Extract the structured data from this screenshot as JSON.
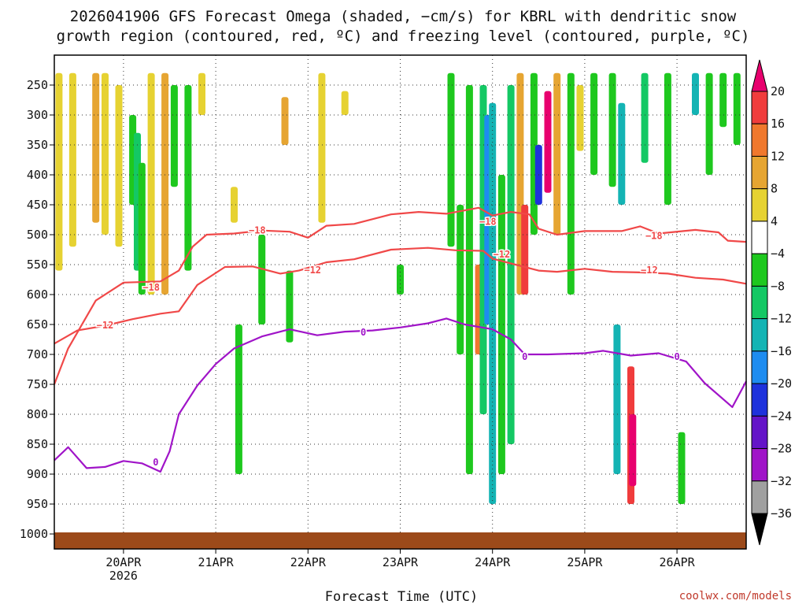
{
  "chart_data": {
    "type": "heatmap",
    "title_lines": [
      "2026041906 GFS Forecast Omega (shaded, −cm/s) for KBRL with dendritic snow",
      "growth region (contoured, red, ºC) and freezing level (contoured, purple, ºC)"
    ],
    "xlabel": "Forecast Time (UTC)",
    "ylabel": "",
    "credit": "coolwx.com/models",
    "x_range_days": [
      19.25,
      26.75
    ],
    "x_ticks": [
      {
        "day": 20,
        "label": "20APR",
        "sub": "2026"
      },
      {
        "day": 21,
        "label": "21APR",
        "sub": ""
      },
      {
        "day": 22,
        "label": "22APR",
        "sub": ""
      },
      {
        "day": 23,
        "label": "23APR",
        "sub": ""
      },
      {
        "day": 24,
        "label": "24APR",
        "sub": ""
      },
      {
        "day": 25,
        "label": "25APR",
        "sub": ""
      },
      {
        "day": 26,
        "label": "26APR",
        "sub": ""
      }
    ],
    "y_range_hpa": [
      200,
      1025
    ],
    "y_ticks": [
      250,
      300,
      350,
      400,
      450,
      500,
      550,
      600,
      650,
      700,
      750,
      800,
      850,
      900,
      950,
      1000
    ],
    "surface_pressure_hpa": 1000,
    "colorbar": {
      "levels": [
        20,
        16,
        12,
        8,
        4,
        -4,
        -8,
        -12,
        -16,
        -20,
        -24,
        -28,
        -32,
        -36
      ],
      "labels": [
        "20",
        "16",
        "12",
        "8",
        "4",
        "−4",
        "−8",
        "−12",
        "−16",
        "−20",
        "−24",
        "−28",
        "−32",
        "−36"
      ],
      "bins": [
        {
          "range": "> 20",
          "color": "#e8006e"
        },
        {
          "range": "16 to 20",
          "color": "#f03c3c"
        },
        {
          "range": "12 to 16",
          "color": "#f0782d"
        },
        {
          "range": "8 to 12",
          "color": "#e6a532"
        },
        {
          "range": "4 to 8",
          "color": "#e6d232"
        },
        {
          "range": "-4 to 4",
          "color": "#ffffff"
        },
        {
          "range": "-8 to -4",
          "color": "#1ec81e"
        },
        {
          "range": "-12 to -8",
          "color": "#14c864"
        },
        {
          "range": "-16 to -12",
          "color": "#14b4b4"
        },
        {
          "range": "-20 to -16",
          "color": "#1e8cf0"
        },
        {
          "range": "-24 to -20",
          "color": "#1e32dc"
        },
        {
          "range": "-28 to -24",
          "color": "#6414c8"
        },
        {
          "range": "-32 to -28",
          "color": "#a014c8"
        },
        {
          "range": "-36 to -32",
          "color": "#a0a0a0"
        },
        {
          "range": "< -36",
          "color": "#000000"
        }
      ]
    },
    "shaded_regions": [
      {
        "day": 19.3,
        "hpa": [
          230,
          560
        ],
        "color": "#e6d232"
      },
      {
        "day": 19.45,
        "hpa": [
          230,
          520
        ],
        "color": "#e6d232"
      },
      {
        "day": 19.7,
        "hpa": [
          230,
          480
        ],
        "color": "#e6a532"
      },
      {
        "day": 19.8,
        "hpa": [
          230,
          500
        ],
        "color": "#e6d232"
      },
      {
        "day": 19.95,
        "hpa": [
          250,
          520
        ],
        "color": "#e6d232"
      },
      {
        "day": 20.1,
        "hpa": [
          300,
          450
        ],
        "color": "#1ec81e"
      },
      {
        "day": 20.15,
        "hpa": [
          330,
          560
        ],
        "color": "#14c864"
      },
      {
        "day": 20.2,
        "hpa": [
          380,
          600
        ],
        "color": "#1ec81e"
      },
      {
        "day": 20.3,
        "hpa": [
          230,
          600
        ],
        "color": "#e6d232"
      },
      {
        "day": 20.45,
        "hpa": [
          230,
          600
        ],
        "color": "#e6a532"
      },
      {
        "day": 20.55,
        "hpa": [
          250,
          420
        ],
        "color": "#1ec81e"
      },
      {
        "day": 20.7,
        "hpa": [
          250,
          560
        ],
        "color": "#1ec81e"
      },
      {
        "day": 20.85,
        "hpa": [
          230,
          300
        ],
        "color": "#e6d232"
      },
      {
        "day": 21.2,
        "hpa": [
          420,
          480
        ],
        "color": "#e6d232"
      },
      {
        "day": 21.25,
        "hpa": [
          650,
          900
        ],
        "color": "#1ec81e"
      },
      {
        "day": 21.5,
        "hpa": [
          500,
          650
        ],
        "color": "#1ec81e"
      },
      {
        "day": 21.75,
        "hpa": [
          270,
          350
        ],
        "color": "#e6a532"
      },
      {
        "day": 21.8,
        "hpa": [
          560,
          680
        ],
        "color": "#1ec81e"
      },
      {
        "day": 22.15,
        "hpa": [
          230,
          480
        ],
        "color": "#e6d232"
      },
      {
        "day": 22.4,
        "hpa": [
          260,
          300
        ],
        "color": "#e6d232"
      },
      {
        "day": 23.0,
        "hpa": [
          550,
          600
        ],
        "color": "#1ec81e"
      },
      {
        "day": 23.55,
        "hpa": [
          230,
          520
        ],
        "color": "#1ec81e"
      },
      {
        "day": 23.65,
        "hpa": [
          450,
          700
        ],
        "color": "#1ec81e"
      },
      {
        "day": 23.75,
        "hpa": [
          250,
          900
        ],
        "color": "#1ec81e"
      },
      {
        "day": 23.85,
        "hpa": [
          550,
          700
        ],
        "color": "#f0782d"
      },
      {
        "day": 23.9,
        "hpa": [
          250,
          800
        ],
        "color": "#14c864"
      },
      {
        "day": 23.95,
        "hpa": [
          300,
          650
        ],
        "color": "#1e8cf0"
      },
      {
        "day": 24.0,
        "hpa": [
          280,
          950
        ],
        "color": "#14b4b4"
      },
      {
        "day": 24.1,
        "hpa": [
          400,
          900
        ],
        "color": "#1ec81e"
      },
      {
        "day": 24.2,
        "hpa": [
          250,
          850
        ],
        "color": "#14c864"
      },
      {
        "day": 24.3,
        "hpa": [
          230,
          600
        ],
        "color": "#e6a532"
      },
      {
        "day": 24.35,
        "hpa": [
          450,
          600
        ],
        "color": "#f03c3c"
      },
      {
        "day": 24.45,
        "hpa": [
          230,
          500
        ],
        "color": "#1ec81e"
      },
      {
        "day": 24.5,
        "hpa": [
          350,
          450
        ],
        "color": "#1e32dc"
      },
      {
        "day": 24.6,
        "hpa": [
          260,
          430
        ],
        "color": "#e8006e"
      },
      {
        "day": 24.7,
        "hpa": [
          230,
          500
        ],
        "color": "#e6a532"
      },
      {
        "day": 24.85,
        "hpa": [
          230,
          600
        ],
        "color": "#1ec81e"
      },
      {
        "day": 24.95,
        "hpa": [
          250,
          360
        ],
        "color": "#e6d232"
      },
      {
        "day": 25.1,
        "hpa": [
          230,
          400
        ],
        "color": "#1ec81e"
      },
      {
        "day": 25.3,
        "hpa": [
          230,
          420
        ],
        "color": "#1ec81e"
      },
      {
        "day": 25.4,
        "hpa": [
          280,
          450
        ],
        "color": "#14b4b4"
      },
      {
        "day": 25.35,
        "hpa": [
          650,
          900
        ],
        "color": "#14b4b4"
      },
      {
        "day": 25.5,
        "hpa": [
          720,
          950
        ],
        "color": "#f03c3c"
      },
      {
        "day": 25.52,
        "hpa": [
          800,
          920
        ],
        "color": "#e8006e"
      },
      {
        "day": 25.65,
        "hpa": [
          230,
          380
        ],
        "color": "#14c864"
      },
      {
        "day": 25.9,
        "hpa": [
          230,
          450
        ],
        "color": "#1ec81e"
      },
      {
        "day": 26.05,
        "hpa": [
          830,
          950
        ],
        "color": "#1ec81e"
      },
      {
        "day": 26.2,
        "hpa": [
          230,
          300
        ],
        "color": "#14b4b4"
      },
      {
        "day": 26.35,
        "hpa": [
          230,
          400
        ],
        "color": "#1ec81e"
      },
      {
        "day": 26.5,
        "hpa": [
          230,
          320
        ],
        "color": "#1ec81e"
      },
      {
        "day": 26.65,
        "hpa": [
          230,
          350
        ],
        "color": "#1ec81e"
      }
    ],
    "series": [
      {
        "name": "-18 ºC",
        "color": "#f04848",
        "label": "−18",
        "label_points": [
          [
            20.3,
            588
          ],
          [
            21.45,
            493
          ],
          [
            23.95,
            478
          ],
          [
            25.75,
            502
          ]
        ],
        "points": [
          [
            19.25,
            750
          ],
          [
            19.4,
            690
          ],
          [
            19.7,
            610
          ],
          [
            20.0,
            580
          ],
          [
            20.4,
            578
          ],
          [
            20.6,
            560
          ],
          [
            20.75,
            520
          ],
          [
            20.9,
            500
          ],
          [
            21.2,
            498
          ],
          [
            21.5,
            493
          ],
          [
            21.8,
            495
          ],
          [
            22.0,
            505
          ],
          [
            22.2,
            485
          ],
          [
            22.5,
            482
          ],
          [
            22.9,
            466
          ],
          [
            23.2,
            462
          ],
          [
            23.5,
            465
          ],
          [
            23.85,
            455
          ],
          [
            24.0,
            468
          ],
          [
            24.2,
            462
          ],
          [
            24.4,
            466
          ],
          [
            24.5,
            490
          ],
          [
            24.7,
            500
          ],
          [
            25.0,
            494
          ],
          [
            25.4,
            494
          ],
          [
            25.6,
            486
          ],
          [
            25.8,
            498
          ],
          [
            26.2,
            492
          ],
          [
            26.45,
            496
          ],
          [
            26.55,
            510
          ],
          [
            26.75,
            512
          ]
        ],
        "type": "line"
      },
      {
        "name": "-12 ºC",
        "color": "#f04848",
        "label": "−12",
        "label_points": [
          [
            19.8,
            651
          ],
          [
            22.05,
            559
          ],
          [
            24.1,
            533
          ],
          [
            25.7,
            559
          ]
        ],
        "points": [
          [
            19.25,
            682
          ],
          [
            19.5,
            660
          ],
          [
            19.8,
            652
          ],
          [
            20.1,
            641
          ],
          [
            20.4,
            632
          ],
          [
            20.6,
            628
          ],
          [
            20.8,
            584
          ],
          [
            21.1,
            554
          ],
          [
            21.4,
            553
          ],
          [
            21.7,
            565
          ],
          [
            21.9,
            560
          ],
          [
            22.2,
            546
          ],
          [
            22.5,
            541
          ],
          [
            22.9,
            525
          ],
          [
            23.3,
            522
          ],
          [
            23.6,
            526
          ],
          [
            23.9,
            527
          ],
          [
            24.0,
            540
          ],
          [
            24.2,
            548
          ],
          [
            24.5,
            560
          ],
          [
            24.7,
            562
          ],
          [
            25.0,
            557
          ],
          [
            25.3,
            562
          ],
          [
            25.6,
            563
          ],
          [
            25.9,
            565
          ],
          [
            26.2,
            572
          ],
          [
            26.5,
            575
          ],
          [
            26.75,
            582
          ]
        ],
        "type": "line"
      },
      {
        "name": "0 ºC (freezing level)",
        "color": "#a014c8",
        "label": "0",
        "label_points": [
          [
            20.35,
            880
          ],
          [
            22.6,
            663
          ],
          [
            24.35,
            704
          ],
          [
            26.0,
            704
          ]
        ],
        "points": [
          [
            19.25,
            877
          ],
          [
            19.4,
            855
          ],
          [
            19.6,
            890
          ],
          [
            19.8,
            888
          ],
          [
            20.0,
            878
          ],
          [
            20.2,
            882
          ],
          [
            20.4,
            896
          ],
          [
            20.5,
            862
          ],
          [
            20.6,
            800
          ],
          [
            20.8,
            752
          ],
          [
            21.0,
            716
          ],
          [
            21.2,
            690
          ],
          [
            21.5,
            670
          ],
          [
            21.8,
            658
          ],
          [
            22.1,
            668
          ],
          [
            22.4,
            662
          ],
          [
            22.7,
            660
          ],
          [
            23.0,
            655
          ],
          [
            23.3,
            648
          ],
          [
            23.5,
            640
          ],
          [
            23.7,
            650
          ],
          [
            24.0,
            658
          ],
          [
            24.2,
            675
          ],
          [
            24.35,
            700
          ],
          [
            24.6,
            700
          ],
          [
            25.0,
            698
          ],
          [
            25.2,
            694
          ],
          [
            25.5,
            702
          ],
          [
            25.8,
            698
          ],
          [
            26.1,
            712
          ],
          [
            26.3,
            748
          ],
          [
            26.6,
            788
          ],
          [
            26.75,
            745
          ]
        ],
        "type": "line"
      }
    ]
  }
}
